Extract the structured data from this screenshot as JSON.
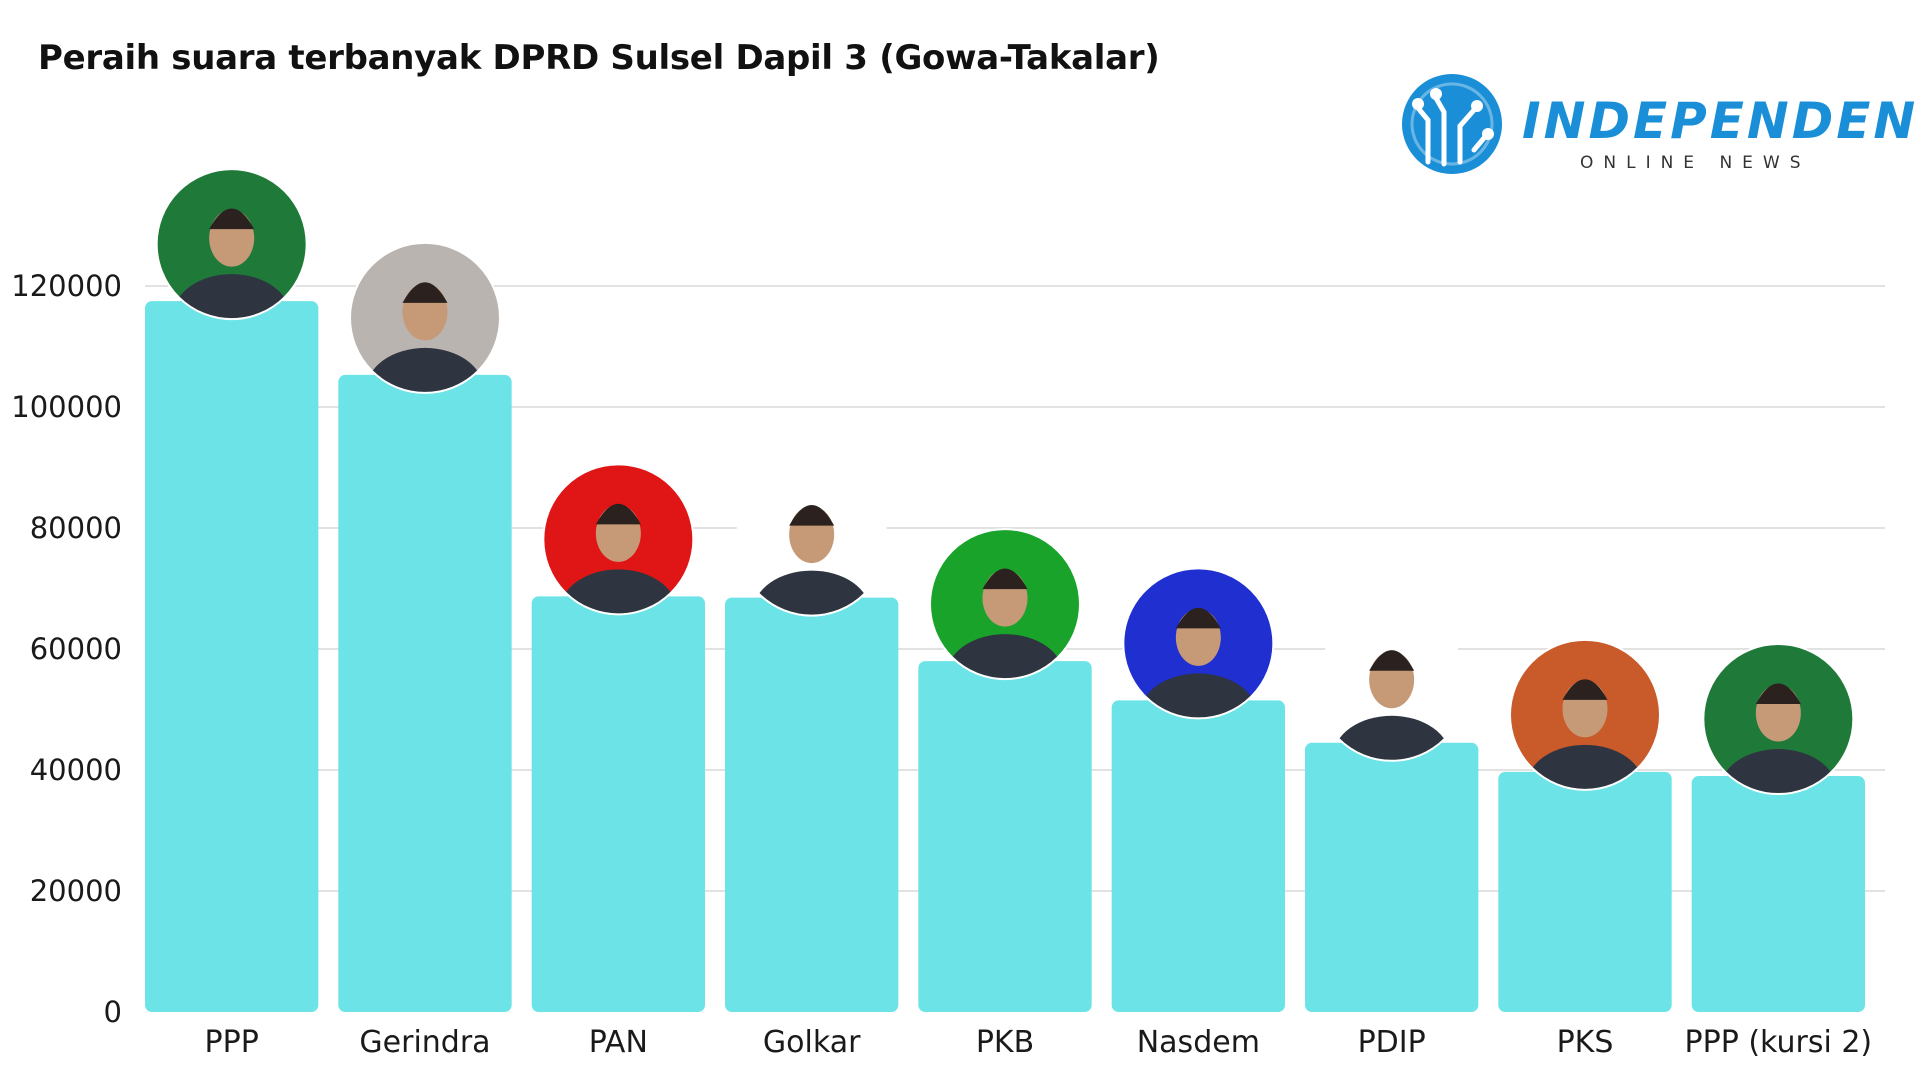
{
  "chart_data": {
    "type": "bar",
    "title": "Peraih suara terbanyak DPRD Sulsel Dapil 3 (Gowa-Takalar)",
    "categories": [
      "PPP",
      "Gerindra",
      "PAN",
      "Golkar",
      "PKB",
      "Nasdem",
      "PDIP",
      "PKS",
      "PPP (kursi 2)"
    ],
    "values": [
      117500,
      105300,
      68700,
      68500,
      58000,
      51500,
      44500,
      39700,
      39000
    ],
    "ylim": [
      0,
      120000
    ],
    "yticks": [
      0,
      20000,
      40000,
      60000,
      80000,
      100000,
      120000
    ],
    "grid": true,
    "bar_color": "#6ce3e6",
    "photo_backgrounds": [
      "#1f7a3a",
      "#b9b4b0",
      "#e01616",
      "#ffffff",
      "#1aa32a",
      "#1f2fd0",
      "#ffffff",
      "#c95a2a",
      "#1f7a3a"
    ]
  },
  "logo": {
    "wordmark": "INDEPENDEN",
    "tagline": "ONLINE NEWS",
    "color": "#1a8fd8"
  }
}
